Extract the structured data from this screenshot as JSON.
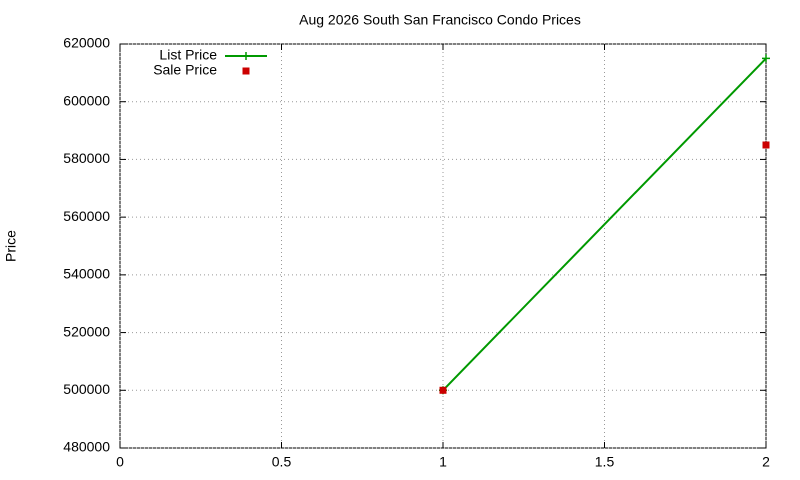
{
  "chart_data": {
    "type": "line",
    "title": "Aug 2026 South San Francisco Condo Prices",
    "ylabel": "Price",
    "x": [
      1,
      2
    ],
    "series": [
      {
        "name": "List Price",
        "color": "#009900",
        "style": "linespoints",
        "marker": "plus",
        "values": [
          500000,
          615000
        ]
      },
      {
        "name": "Sale Price",
        "color": "#cc0000",
        "style": "points",
        "marker": "square",
        "values": [
          500000,
          585000
        ]
      }
    ],
    "xlim": [
      0,
      2
    ],
    "xticks": [
      0,
      0.5,
      1,
      1.5,
      2
    ],
    "ylim": [
      480000,
      620000
    ],
    "yticks": [
      480000,
      500000,
      520000,
      540000,
      560000,
      580000,
      600000,
      620000
    ],
    "grid": true,
    "legend": "top-left"
  }
}
